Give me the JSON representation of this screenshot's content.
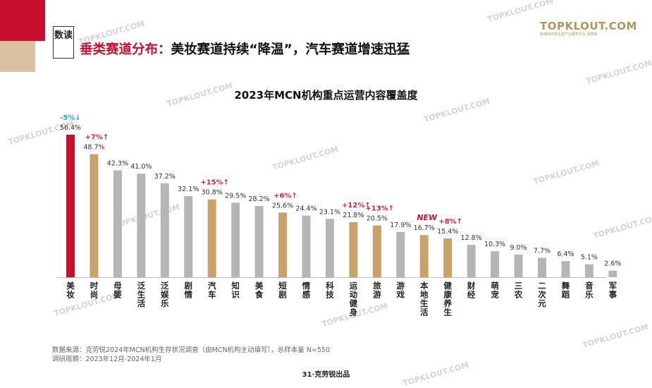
{
  "header": {
    "tag": "数读",
    "headline_red": "垂类赛道分布：",
    "headline_black": "美妆赛道持续“降温”，汽车赛道增速迅猛"
  },
  "logo": {
    "name": "TOPKLOUT.COM",
    "sub": "新媒体内容生态产业服务平台 克劳锐"
  },
  "watermark": "TOPKLOUT.COM",
  "colors": {
    "highlight_red": "#c8102e",
    "highlight_gold": "#c9a26a",
    "neutral_gray": "#b5b5b5",
    "up_red": "#d0233f",
    "down_blue": "#1ea2dc"
  },
  "chart_data": {
    "type": "bar",
    "title": "2023年MCN机构重点运营内容覆盖度",
    "categories": [
      "美妆",
      "时尚",
      "母婴",
      "泛生活",
      "泛娱乐",
      "剧情",
      "汽车",
      "知识",
      "美食",
      "短剧",
      "情感",
      "科技",
      "运动健身",
      "旅游",
      "游戏",
      "本地生活",
      "健康养生",
      "财经",
      "萌宠",
      "三农",
      "二次元",
      "舞蹈",
      "音乐",
      "军事"
    ],
    "values": [
      56.4,
      48.7,
      42.3,
      41.0,
      37.2,
      32.1,
      30.8,
      29.5,
      28.2,
      25.6,
      24.4,
      23.1,
      21.8,
      20.5,
      17.9,
      16.7,
      15.4,
      12.8,
      10.3,
      9.0,
      7.7,
      6.4,
      5.1,
      2.6
    ],
    "value_labels": [
      "56.4%",
      "48.7%",
      "42.3%",
      "41.0%",
      "37.2%",
      "32.1%",
      "30.8%",
      "29.5%",
      "28.2%",
      "25.6%",
      "24.4%",
      "23.1%",
      "21.8%",
      "20.5%",
      "17.9%",
      "16.7%",
      "15.4%",
      "12.8%",
      "10.3%",
      "9.0%",
      "7.7%",
      "6.4%",
      "5.1%",
      "2.6%"
    ],
    "bar_colors": [
      "red",
      "gold",
      "gray",
      "gray",
      "gray",
      "gray",
      "gold",
      "gray",
      "gray",
      "gold",
      "gray",
      "gray",
      "gold",
      "gold",
      "gray",
      "gold",
      "gold",
      "gray",
      "gray",
      "gray",
      "gray",
      "gray",
      "gray",
      "gray"
    ],
    "annotations": [
      {
        "index": 0,
        "text": "-5%↓",
        "kind": "down"
      },
      {
        "index": 1,
        "text": "+7%↑",
        "kind": "up"
      },
      {
        "index": 6,
        "text": "+15%↑",
        "kind": "up"
      },
      {
        "index": 9,
        "text": "+6%↑",
        "kind": "up"
      },
      {
        "index": 12,
        "text": "+12%↑",
        "kind": "up"
      },
      {
        "index": 13,
        "text": "+13%↑",
        "kind": "up"
      },
      {
        "index": 15,
        "text": "NEW",
        "kind": "new"
      },
      {
        "index": 16,
        "text": "+8%↑",
        "kind": "up"
      }
    ]
  },
  "source": {
    "line1": "数据来源：克劳锐2024年MCN机构生存状况调查（由MCN机构主动填写），总样本量 N=550",
    "line2": "调研周期：2023年12月-2024年1月"
  },
  "footer": "31·克劳锐出品"
}
